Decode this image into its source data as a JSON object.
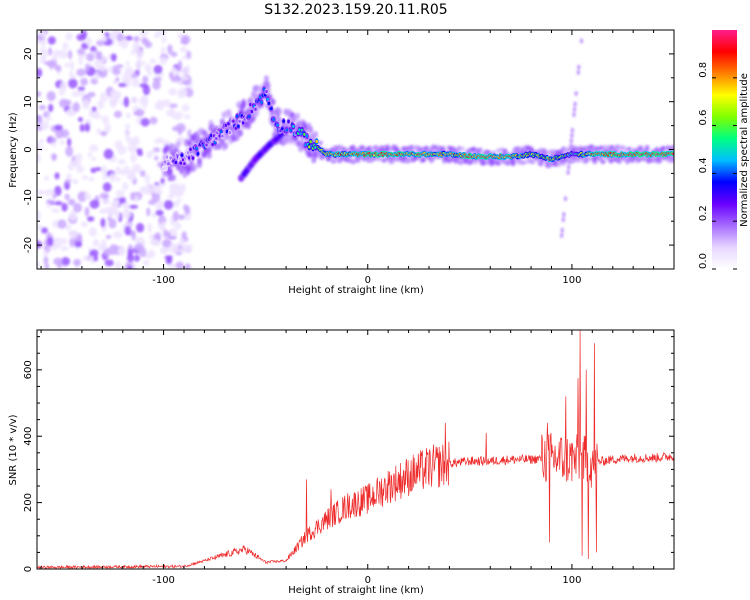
{
  "figure": {
    "title": "S132.2023.159.20.11.R05"
  },
  "colors": {
    "snr_line": "#ee2a2a",
    "frame": "#000000",
    "colormap": [
      "#ffffff",
      "#e6d6ff",
      "#a56bff",
      "#6a00ff",
      "#0000ff",
      "#00bfff",
      "#00ff80",
      "#7fff00",
      "#ffff00",
      "#ff8000",
      "#ff0000",
      "#ff1e8c"
    ]
  },
  "chart_data": [
    {
      "type": "heatmap",
      "xlabel": "Height of straight line (km)",
      "ylabel": "Frequency (Hz)",
      "xlim": [
        -162,
        150
      ],
      "ylim": [
        -25,
        25
      ],
      "xticks": [
        -100,
        0,
        100
      ],
      "yticks": [
        -20,
        -10,
        0,
        10,
        20
      ],
      "colorbar": {
        "label": "Normalized spectral amplitude",
        "range": [
          0,
          1
        ],
        "ticks": [
          "0.0",
          "0.2",
          "0.4",
          "0.6",
          "0.8"
        ]
      },
      "noise_region": {
        "x": [
          -162,
          -95
        ],
        "y": [
          -25,
          25
        ],
        "amplitude": 0.1
      },
      "ridge": [
        {
          "x": -100,
          "y": -3,
          "amp": 0.15
        },
        {
          "x": -90,
          "y": -2,
          "amp": 0.25
        },
        {
          "x": -80,
          "y": 1,
          "amp": 0.35
        },
        {
          "x": -70,
          "y": 4,
          "amp": 0.3
        },
        {
          "x": -60,
          "y": 7,
          "amp": 0.3
        },
        {
          "x": -50,
          "y": 12,
          "amp": 0.35
        },
        {
          "x": -45,
          "y": 5,
          "amp": 0.3
        },
        {
          "x": -38,
          "y": 5,
          "amp": 0.35
        },
        {
          "x": -30,
          "y": 2,
          "amp": 0.5
        },
        {
          "x": -20,
          "y": -1,
          "amp": 0.8
        },
        {
          "x": -10,
          "y": -1,
          "amp": 0.8
        },
        {
          "x": 0,
          "y": -1,
          "amp": 0.85
        },
        {
          "x": 10,
          "y": -1,
          "amp": 0.9
        },
        {
          "x": 25,
          "y": -1,
          "amp": 0.85
        },
        {
          "x": 40,
          "y": -1,
          "amp": 0.75
        },
        {
          "x": 55,
          "y": -1.5,
          "amp": 0.9
        },
        {
          "x": 70,
          "y": -1.5,
          "amp": 0.8
        },
        {
          "x": 80,
          "y": -1,
          "amp": 0.6
        },
        {
          "x": 90,
          "y": -2,
          "amp": 0.75
        },
        {
          "x": 100,
          "y": -1,
          "amp": 0.5
        },
        {
          "x": 110,
          "y": -1,
          "amp": 0.85
        },
        {
          "x": 120,
          "y": -1,
          "amp": 0.85
        },
        {
          "x": 130,
          "y": -1,
          "amp": 0.95
        },
        {
          "x": 150,
          "y": -1,
          "amp": 0.95
        }
      ],
      "secondary_branch": [
        {
          "x": -62,
          "y": -6
        },
        {
          "x": -55,
          "y": -2
        },
        {
          "x": -48,
          "y": 1
        },
        {
          "x": -40,
          "y": 4
        }
      ],
      "streak": {
        "x": [
          95,
          105
        ],
        "y": [
          -18,
          24
        ],
        "amp": 0.15
      }
    },
    {
      "type": "line",
      "xlabel": "Height of straight line (km)",
      "ylabel": "SNR (10 * v/v)",
      "xlim": [
        -162,
        150
      ],
      "ylim": [
        0,
        720
      ],
      "xticks": [
        -100,
        0,
        100
      ],
      "yticks": [
        0,
        200,
        400,
        600
      ],
      "series": [
        {
          "envelope": [
            {
              "x": -162,
              "y": 5
            },
            {
              "x": -90,
              "y": 8
            },
            {
              "x": -80,
              "y": 25
            },
            {
              "x": -60,
              "y": 60
            },
            {
              "x": -50,
              "y": 20
            },
            {
              "x": -40,
              "y": 25
            },
            {
              "x": -30,
              "y": 100
            },
            {
              "x": -20,
              "y": 150
            },
            {
              "x": -10,
              "y": 190
            },
            {
              "x": 0,
              "y": 210
            },
            {
              "x": 10,
              "y": 250
            },
            {
              "x": 20,
              "y": 280
            },
            {
              "x": 30,
              "y": 305
            },
            {
              "x": 40,
              "y": 318
            },
            {
              "x": 50,
              "y": 325
            },
            {
              "x": 60,
              "y": 325
            },
            {
              "x": 70,
              "y": 330
            },
            {
              "x": 80,
              "y": 330
            },
            {
              "x": 90,
              "y": 335
            },
            {
              "x": 100,
              "y": 330
            },
            {
              "x": 110,
              "y": 320
            },
            {
              "x": 120,
              "y": 330
            },
            {
              "x": 130,
              "y": 335
            },
            {
              "x": 140,
              "y": 335
            },
            {
              "x": 150,
              "y": 340
            }
          ],
          "spikes": [
            {
              "x": -30,
              "y": 270
            },
            {
              "x": -18,
              "y": 240
            },
            {
              "x": 38,
              "y": 440
            },
            {
              "x": 58,
              "y": 410
            },
            {
              "x": 88,
              "y": 440
            },
            {
              "x": 89,
              "y": 80
            },
            {
              "x": 97,
              "y": 520
            },
            {
              "x": 103,
              "y": 575
            },
            {
              "x": 104,
              "y": 720
            },
            {
              "x": 105,
              "y": 40
            },
            {
              "x": 107,
              "y": 600
            },
            {
              "x": 108,
              "y": 30
            },
            {
              "x": 111,
              "y": 680
            },
            {
              "x": 112,
              "y": 50
            }
          ]
        }
      ]
    }
  ]
}
